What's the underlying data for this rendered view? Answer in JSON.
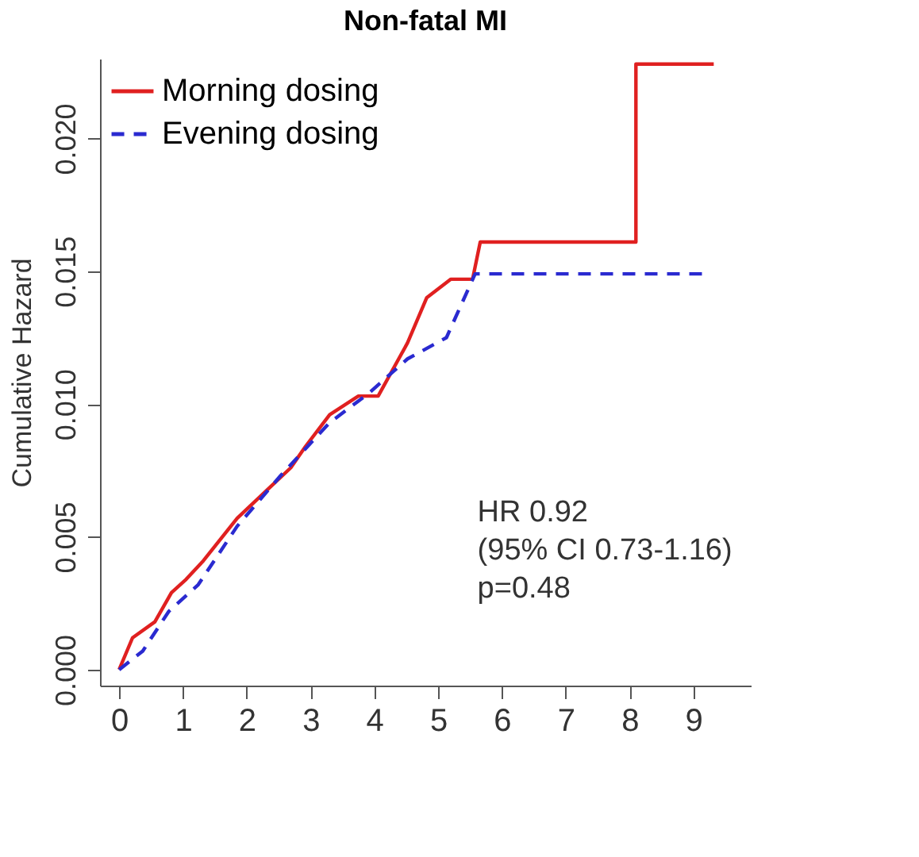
{
  "chart_data": {
    "type": "line",
    "title": "Non-fatal MI",
    "ylabel": "Cumulative Hazard",
    "xlim": [
      -0.3,
      9.9
    ],
    "ylim": [
      -0.0006,
      0.023
    ],
    "xticks": [
      0,
      1,
      2,
      3,
      4,
      5,
      6,
      7,
      8,
      9
    ],
    "yticks": [
      {
        "value": 0,
        "label": "0.000"
      },
      {
        "value": 0.005,
        "label": "0.005"
      },
      {
        "value": 0.01,
        "label": "0.010"
      },
      {
        "value": 0.015,
        "label": "0.015"
      },
      {
        "value": 0.02,
        "label": "0.020"
      }
    ],
    "legend": "top left",
    "grid": false,
    "series": [
      {
        "name": "Morning dosing",
        "color": "#e02020",
        "line_style": "solid",
        "x": [
          0,
          0.21,
          0.56,
          0.82,
          1.05,
          1.32,
          1.85,
          2.38,
          2.69,
          2.92,
          3.3,
          3.75,
          4.06,
          4.52,
          4.82,
          5.2,
          5.54,
          5.66,
          8.1,
          8.1,
          9.32
        ],
        "values": [
          0,
          0.0012,
          0.0018,
          0.0029,
          0.0034,
          0.0041,
          0.0057,
          0.0069,
          0.0076,
          0.0084,
          0.0096,
          0.0103,
          0.0103,
          0.0123,
          0.014,
          0.0147,
          0.0147,
          0.0161,
          0.0161,
          0.0228,
          0.0228
        ]
      },
      {
        "name": "Evening dosing",
        "color": "#2a2ad0",
        "line_style": "dashed",
        "x": [
          0,
          0.37,
          0.78,
          1.24,
          1.85,
          2.53,
          3.3,
          3.91,
          4.52,
          5.13,
          5.58,
          9.2
        ],
        "values": [
          0,
          0.0007,
          0.0022,
          0.0032,
          0.0054,
          0.0073,
          0.0093,
          0.0104,
          0.0117,
          0.0125,
          0.0149,
          0.0149
        ]
      }
    ],
    "annotations": [
      "HR 0.92",
      "(95% CI 0.73-1.16)",
      "p=0.48"
    ]
  }
}
